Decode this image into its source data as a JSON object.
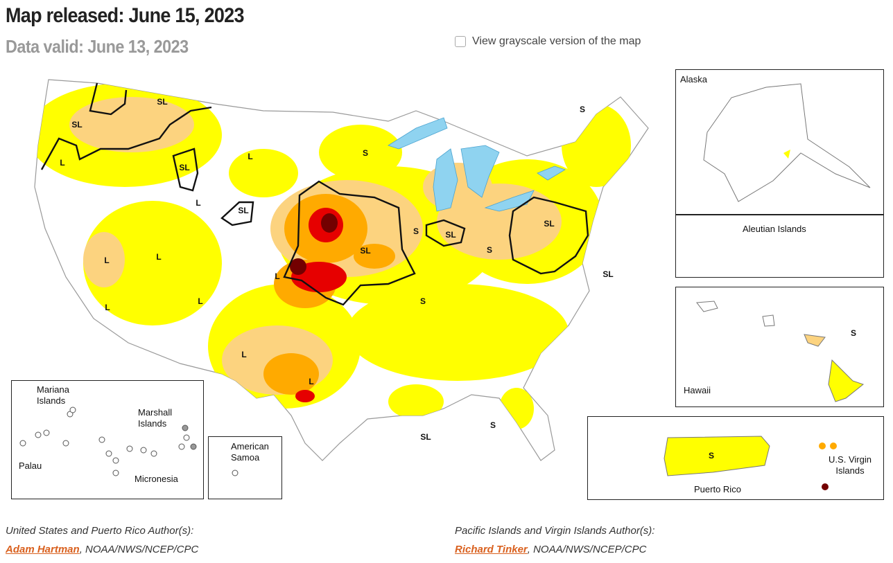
{
  "header": {
    "title": "Map released: June 15, 2023",
    "subtitle": "Data valid: June 13, 2023",
    "grayscale_toggle": "View grayscale version of the map"
  },
  "map": {
    "impact_labels": [
      "SL",
      "SL",
      "L",
      "SL",
      "L",
      "S",
      "L",
      "SL",
      "L",
      "L",
      "L",
      "L",
      "L",
      "SL",
      "S",
      "SL",
      "S",
      "SL",
      "S",
      "L",
      "L",
      "S",
      "SL",
      "SL",
      "S"
    ],
    "insets": {
      "alaska": "Alaska",
      "aleutian": "Aleutian Islands",
      "hawaii": "Hawaii",
      "hawaii_impact": "S",
      "puerto_rico": "Puerto Rico",
      "puerto_rico_impact": "S",
      "virgin_islands": "U.S. Virgin Islands",
      "mariana": "Mariana Islands",
      "marshall": "Marshall Islands",
      "palau": "Palau",
      "micronesia": "Micronesia",
      "samoa": "American Samoa"
    }
  },
  "authors": [
    {
      "heading": "United States and Puerto Rico Author(s):",
      "name": "Adam Hartman",
      "affiliation": ", NOAA/NWS/NCEP/CPC"
    },
    {
      "heading": "Pacific Islands and Virgin Islands Author(s):",
      "name": "Richard Tinker",
      "affiliation": ", NOAA/NWS/NCEP/CPC"
    }
  ]
}
